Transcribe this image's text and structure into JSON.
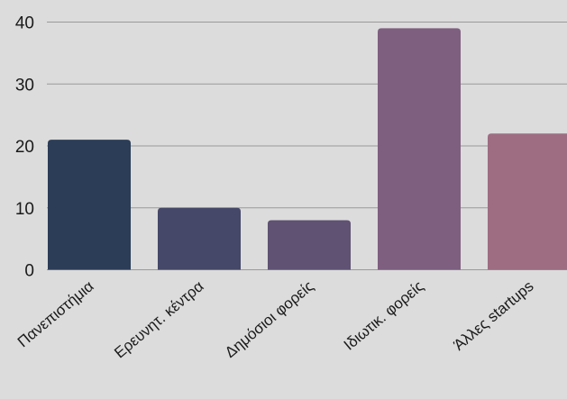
{
  "chart_data": {
    "type": "bar",
    "categories": [
      "Πανεπιστήμια",
      "Ερευνητ. κέντρα",
      "Δημόσιοι φορείς",
      "Ιδιωτικ. φορείς",
      "Άλλες startups"
    ],
    "values": [
      21,
      10,
      8,
      39,
      22
    ],
    "colors": [
      "#2b3d57",
      "#454868",
      "#5f5273",
      "#7e5f80",
      "#9e6d82"
    ],
    "title": "",
    "xlabel": "",
    "ylabel": "",
    "ylim": [
      0,
      40
    ],
    "yticks": [
      0,
      10,
      20,
      30,
      40
    ],
    "grid": true,
    "legend": "none"
  }
}
